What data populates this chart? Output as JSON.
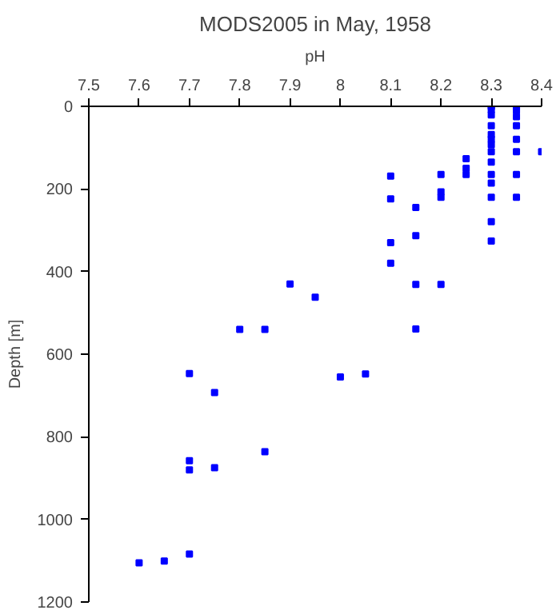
{
  "chart_data": {
    "type": "scatter",
    "title": "MODS2005 in May, 1958",
    "xlabel": "pH",
    "ylabel": "Depth [m]",
    "xlim": [
      7.5,
      8.4
    ],
    "xticks": [
      7.5,
      7.6,
      7.7,
      7.8,
      7.9,
      8,
      8.1,
      8.2,
      8.3,
      8.4
    ],
    "ylim": [
      1200,
      0
    ],
    "yticks": [
      0,
      200,
      400,
      600,
      800,
      1000,
      1200
    ],
    "marker": "square",
    "grid": false,
    "series": [
      {
        "color": "#0000ff",
        "x": [
          8.3,
          8.3,
          8.3,
          8.3,
          8.3,
          8.3,
          8.3,
          8.3,
          8.3,
          8.3,
          8.3,
          8.3,
          8.3,
          8.3,
          8.35,
          8.35,
          8.35,
          8.35,
          8.35,
          8.35,
          8.35,
          8.35,
          8.4,
          8.25,
          8.25,
          8.25,
          8.2,
          8.2,
          8.2,
          8.2,
          8.1,
          8.1,
          8.1,
          8.1,
          8.15,
          8.15,
          8.15,
          8.15,
          7.9,
          7.95,
          7.8,
          7.85,
          8.05,
          7.7,
          7.75,
          8.0,
          7.85,
          7.7,
          7.7,
          7.75,
          7.7,
          7.6,
          7.65
        ],
        "values": [
          0,
          8,
          21,
          47,
          68,
          80,
          93,
          110,
          135,
          165,
          186,
          220,
          279,
          326,
          0,
          10,
          25,
          47,
          80,
          110,
          165,
          220,
          110,
          127,
          150,
          165,
          165,
          207,
          220,
          431,
          169,
          224,
          330,
          380,
          245,
          313,
          431,
          539,
          430,
          462,
          540,
          540,
          648,
          647,
          693,
          655,
          836,
          858,
          880,
          875,
          1084,
          1105,
          1101
        ]
      }
    ]
  }
}
